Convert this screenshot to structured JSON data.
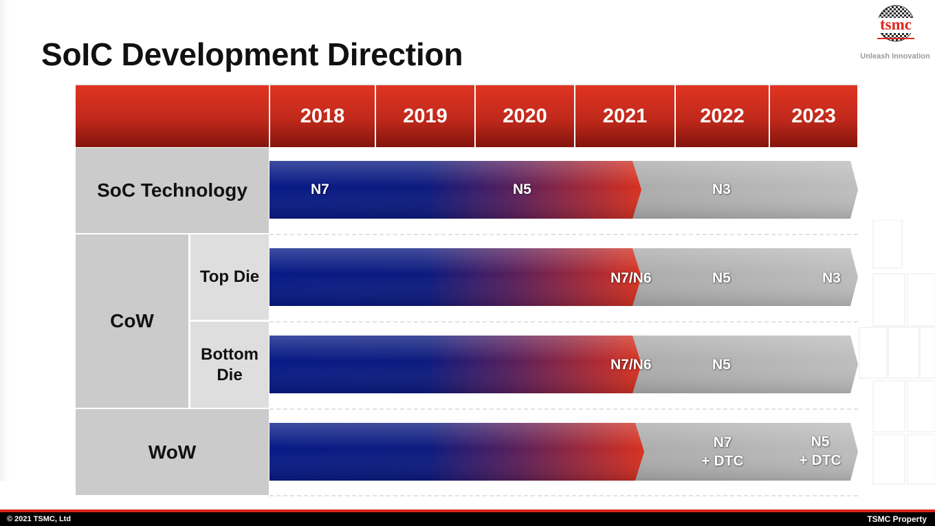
{
  "title": "SoIC Development Direction",
  "logo": {
    "wordmark": "tsmc",
    "tagline": "Unleash Innovation",
    "brand_color": "#d9261c"
  },
  "years": [
    "2018",
    "2019",
    "2020",
    "2021",
    "2022",
    "2023"
  ],
  "rows": {
    "soc": "SoC Technology",
    "cow": "CoW",
    "top_die": "Top Die",
    "bottom_die": [
      "Bottom",
      "Die"
    ],
    "wow": "WoW"
  },
  "bars": {
    "soc": {
      "labels": [
        "N7",
        "N5",
        "N3"
      ]
    },
    "top_die": {
      "labels": [
        "N7/N6",
        "N5",
        "N3"
      ]
    },
    "bottom_die": {
      "labels": [
        "N7/N6",
        "N5"
      ]
    },
    "wow": {
      "labels": [
        [
          "N7",
          "+ DTC"
        ],
        [
          "N5",
          "+ DTC"
        ]
      ]
    }
  },
  "colors": {
    "header_red": "#c0291b",
    "bar_blue": "#0a1a80",
    "bar_red": "#d9301e",
    "bar_gray": "#a8a8a8",
    "label_cell": "#cbcbcb"
  },
  "footer": {
    "copyright": "© 2021 TSMC, Ltd",
    "property": "TSMC Property"
  }
}
